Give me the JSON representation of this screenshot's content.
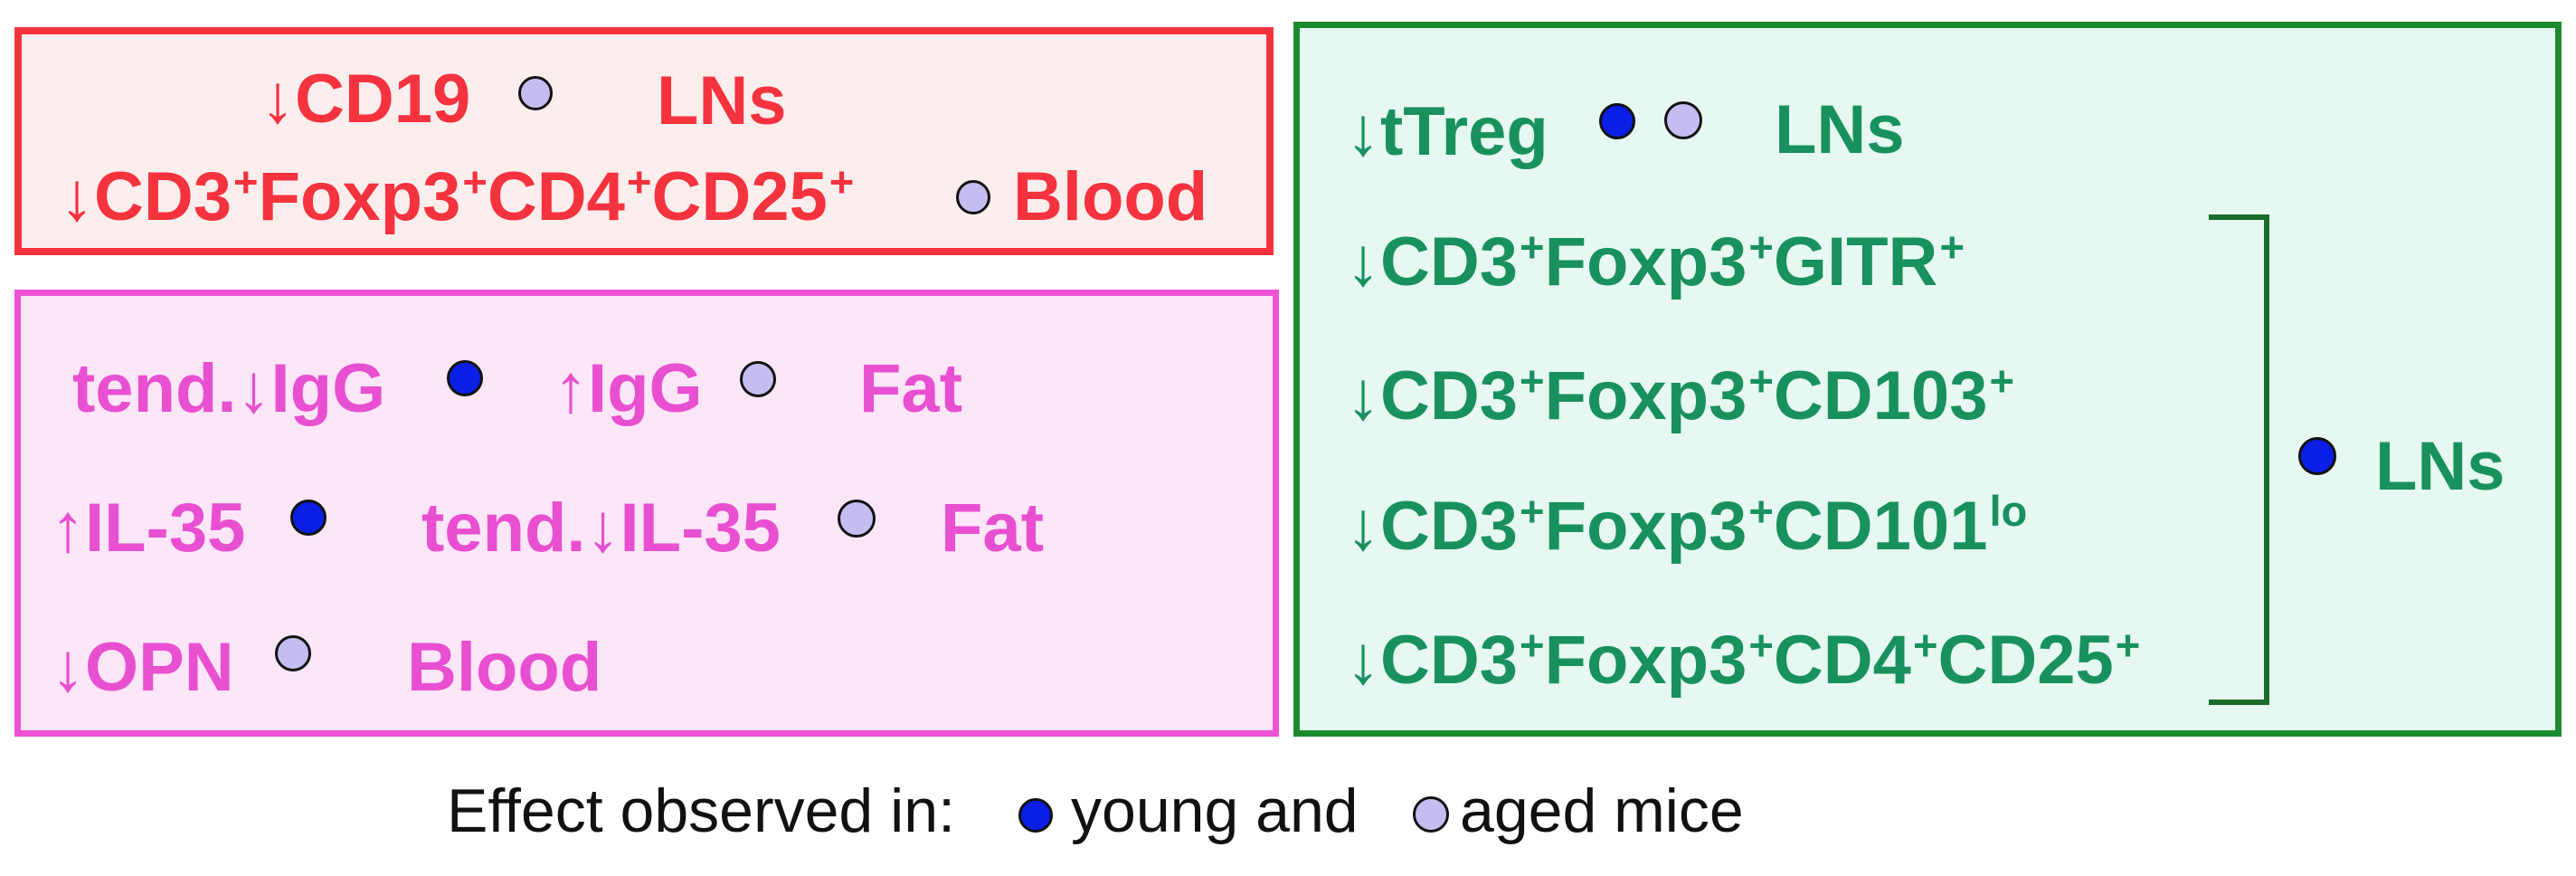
{
  "colors": {
    "red_box_border": "#f5333f",
    "red_box_fill": "#fdeeee",
    "pink_box_border": "#f052d6",
    "pink_box_fill": "#fce6f8",
    "green_box_border": "#1a8a2e",
    "green_box_fill": "#e6f8f1",
    "young_marker": "#0b1ee6",
    "aged_marker": "#c5bdf0"
  },
  "red_box": {
    "row1": {
      "marker": "↓CD19",
      "location": "LNs"
    },
    "row2": {
      "arrow": "↓",
      "p1": "CD3",
      "p2": "Foxp3",
      "p3": "CD4",
      "p4": "CD25",
      "sup": "+",
      "location": "Blood"
    }
  },
  "pink_box": {
    "row1": {
      "a": "tend.↓IgG",
      "b": "↑IgG",
      "location": "Fat"
    },
    "row2": {
      "a": "↑IL-35",
      "b": "tend.↓IL-35",
      "location": "Fat"
    },
    "row3": {
      "a": "↓OPN",
      "location": "Blood"
    }
  },
  "green_box": {
    "row1": {
      "a": "↓tTreg",
      "location": "LNs"
    },
    "row2": {
      "arrow": "↓",
      "p1": "CD3",
      "p2": "Foxp3",
      "p3": "GITR",
      "sup": "+"
    },
    "row3": {
      "arrow": "↓",
      "p1": "CD3",
      "p2": "Foxp3",
      "p3": "CD103",
      "sup": "+"
    },
    "row4": {
      "arrow": "↓",
      "p1": "CD3",
      "p2": "Foxp3",
      "p3": "CD101",
      "sup": "+",
      "sup_lo": "lo"
    },
    "row5": {
      "arrow": "↓",
      "p1": "CD3",
      "p2": "Foxp3",
      "p3": "CD4",
      "p4": "CD25",
      "sup": "+"
    },
    "bracket_location": "LNs"
  },
  "legend": {
    "prefix": "Effect observed in:",
    "young": "young and",
    "aged": "aged mice"
  }
}
